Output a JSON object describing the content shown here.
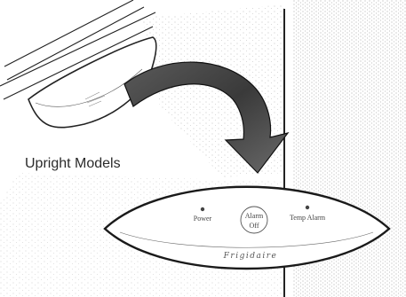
{
  "caption": "Upright Models",
  "control_panel": {
    "power_label": "Power",
    "alarm_off_line1": "Alarm",
    "alarm_off_line2": "Off",
    "temp_alarm_label": "Temp Alarm",
    "brand_name": "Frigidaire"
  }
}
